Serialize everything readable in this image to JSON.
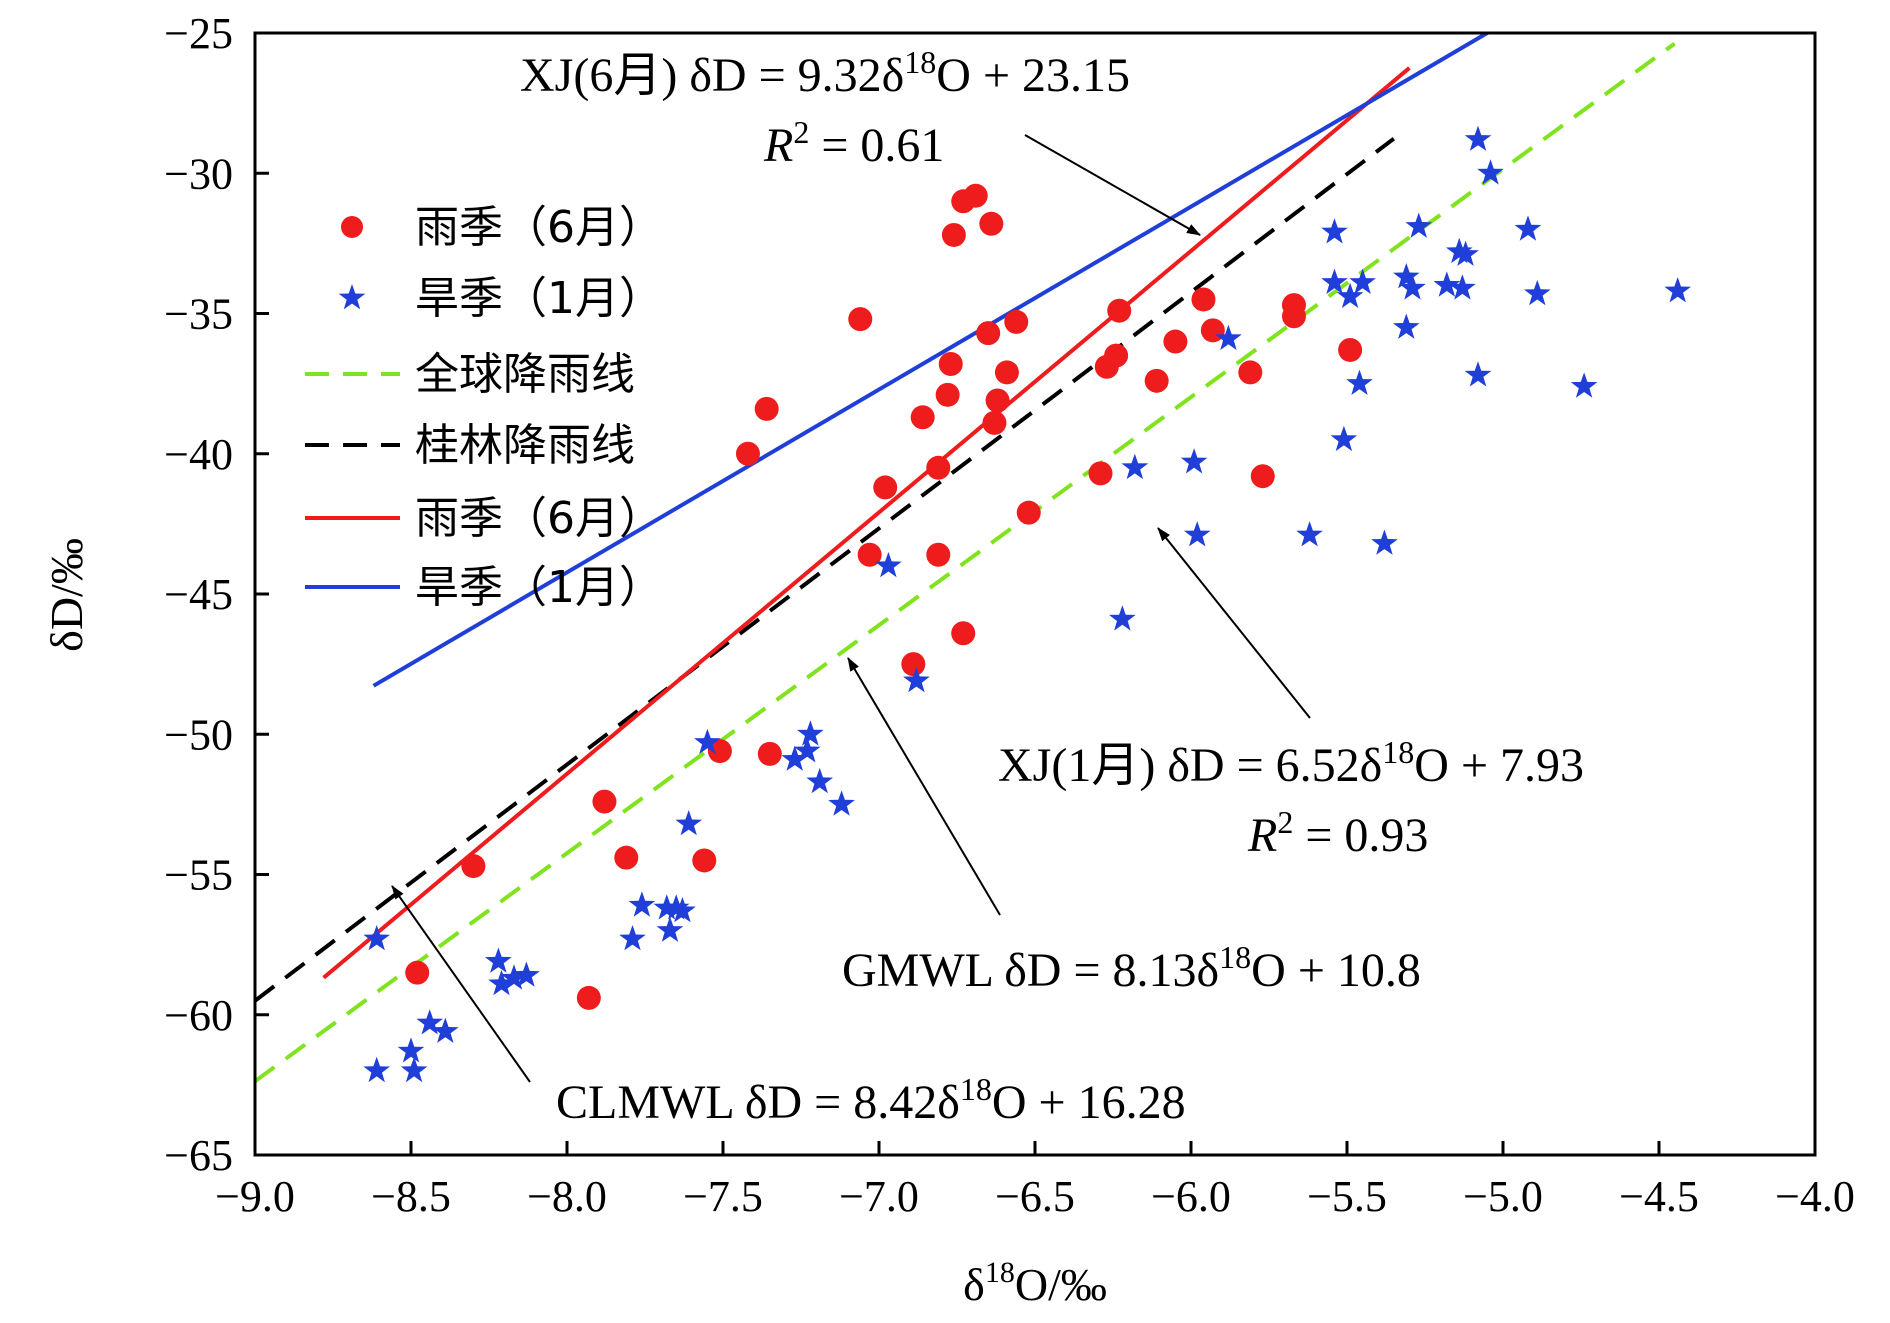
{
  "chart_data": {
    "type": "scatter",
    "xlabel": "δ18O/‰",
    "ylabel": "δD/‰",
    "xlim": [
      -9.0,
      -4.0
    ],
    "ylim": [
      -65,
      -25
    ],
    "x_ticks": [
      -9.0,
      -8.5,
      -8.0,
      -7.5,
      -7.0,
      -6.5,
      -6.0,
      -5.5,
      -5.0,
      -4.5,
      -4.0
    ],
    "y_ticks": [
      -65,
      -60,
      -55,
      -50,
      -45,
      -40,
      -35,
      -30,
      -25
    ],
    "x_tick_labels": [
      "−9.0",
      "−8.5",
      "−8.0",
      "−7.5",
      "−7.0",
      "−6.5",
      "−6.0",
      "−5.5",
      "−5.0",
      "−4.5",
      "−4.0"
    ],
    "y_tick_labels": [
      "−65",
      "−60",
      "−55",
      "−50",
      "−45",
      "−40",
      "−35",
      "−30",
      "−25"
    ],
    "grid": false,
    "legend_position": "top-left",
    "legend": [
      {
        "label": "雨季（6月）",
        "kind": "circle",
        "color": "#ee1c1c"
      },
      {
        "label": "旱季（1月）",
        "kind": "star",
        "color": "#1f3fd8"
      },
      {
        "label": "全球降雨线",
        "kind": "dashed",
        "color": "#7fe31e"
      },
      {
        "label": "桂林降雨线",
        "kind": "dashed",
        "color": "#000000"
      },
      {
        "label": "雨季（6月）",
        "kind": "solid",
        "color": "#ee1c1c"
      },
      {
        "label": "旱季（1月）",
        "kind": "solid",
        "color": "#1f3fd8"
      }
    ],
    "lines": [
      {
        "id": "GMWL",
        "slope": 8.13,
        "intercept": 10.8,
        "x_range": [
          -9.0,
          -4.45
        ],
        "color": "#7fe31e",
        "dashed": true
      },
      {
        "id": "CLMWL",
        "slope": 8.42,
        "intercept": 16.28,
        "x_range": [
          -9.0,
          -5.35
        ],
        "color": "#000000",
        "dashed": true
      },
      {
        "id": "XJ_June",
        "slope": 9.32,
        "intercept": 23.15,
        "x_range": [
          -8.78,
          -5.3
        ],
        "color": "#ee1c1c",
        "dashed": false
      },
      {
        "id": "XJ_Jan",
        "slope": 6.52,
        "intercept": 7.93,
        "x_range": [
          -8.62,
          -4.44
        ],
        "color": "#1f3fd8",
        "dashed": false
      }
    ],
    "series": [
      {
        "marker": "circle",
        "color": "#ee1c1c",
        "points": [
          [
            -8.48,
            -58.5
          ],
          [
            -8.3,
            -54.7
          ],
          [
            -7.93,
            -59.4
          ],
          [
            -7.88,
            -52.4
          ],
          [
            -7.81,
            -54.4
          ],
          [
            -7.56,
            -54.5
          ],
          [
            -7.51,
            -50.6
          ],
          [
            -7.35,
            -50.7
          ],
          [
            -7.42,
            -40.0
          ],
          [
            -7.36,
            -38.4
          ],
          [
            -7.06,
            -35.2
          ],
          [
            -7.03,
            -43.6
          ],
          [
            -6.98,
            -41.2
          ],
          [
            -6.89,
            -47.5
          ],
          [
            -6.86,
            -38.7
          ],
          [
            -6.81,
            -40.5
          ],
          [
            -6.81,
            -43.6
          ],
          [
            -6.78,
            -37.9
          ],
          [
            -6.77,
            -36.8
          ],
          [
            -6.76,
            -32.2
          ],
          [
            -6.73,
            -31.0
          ],
          [
            -6.73,
            -46.4
          ],
          [
            -6.69,
            -30.8
          ],
          [
            -6.65,
            -35.7
          ],
          [
            -6.64,
            -31.8
          ],
          [
            -6.63,
            -38.9
          ],
          [
            -6.62,
            -38.1
          ],
          [
            -6.59,
            -37.1
          ],
          [
            -6.56,
            -35.3
          ],
          [
            -6.52,
            -42.1
          ],
          [
            -6.29,
            -40.7
          ],
          [
            -6.27,
            -36.9
          ],
          [
            -6.24,
            -36.5
          ],
          [
            -6.23,
            -34.9
          ],
          [
            -6.11,
            -37.4
          ],
          [
            -6.05,
            -36.0
          ],
          [
            -5.96,
            -34.5
          ],
          [
            -5.93,
            -35.6
          ],
          [
            -5.81,
            -37.1
          ],
          [
            -5.77,
            -40.8
          ],
          [
            -5.67,
            -34.7
          ],
          [
            -5.67,
            -35.1
          ],
          [
            -5.49,
            -36.3
          ]
        ]
      },
      {
        "marker": "star",
        "color": "#1f3fd8",
        "points": [
          [
            -8.61,
            -57.3
          ],
          [
            -8.61,
            -62.0
          ],
          [
            -8.5,
            -61.3
          ],
          [
            -8.49,
            -62.0
          ],
          [
            -8.44,
            -60.3
          ],
          [
            -8.39,
            -60.6
          ],
          [
            -8.22,
            -58.1
          ],
          [
            -8.21,
            -58.9
          ],
          [
            -8.17,
            -58.7
          ],
          [
            -8.13,
            -58.6
          ],
          [
            -7.79,
            -57.3
          ],
          [
            -7.76,
            -56.1
          ],
          [
            -7.68,
            -56.2
          ],
          [
            -7.67,
            -57.0
          ],
          [
            -7.65,
            -56.2
          ],
          [
            -7.63,
            -56.3
          ],
          [
            -7.61,
            -53.2
          ],
          [
            -7.55,
            -50.3
          ],
          [
            -7.27,
            -50.9
          ],
          [
            -7.23,
            -50.6
          ],
          [
            -7.22,
            -50.0
          ],
          [
            -7.19,
            -51.7
          ],
          [
            -7.12,
            -52.5
          ],
          [
            -6.97,
            -44.0
          ],
          [
            -6.88,
            -48.1
          ],
          [
            -6.22,
            -45.9
          ],
          [
            -6.18,
            -40.5
          ],
          [
            -5.99,
            -40.3
          ],
          [
            -5.98,
            -42.9
          ],
          [
            -5.88,
            -35.9
          ],
          [
            -5.62,
            -42.9
          ],
          [
            -5.54,
            -32.1
          ],
          [
            -5.54,
            -33.9
          ],
          [
            -5.51,
            -39.5
          ],
          [
            -5.49,
            -34.4
          ],
          [
            -5.46,
            -37.5
          ],
          [
            -5.45,
            -33.9
          ],
          [
            -5.38,
            -43.2
          ],
          [
            -5.31,
            -33.7
          ],
          [
            -5.31,
            -35.5
          ],
          [
            -5.29,
            -34.1
          ],
          [
            -5.27,
            -31.9
          ],
          [
            -5.18,
            -34.0
          ],
          [
            -5.14,
            -32.8
          ],
          [
            -5.13,
            -34.1
          ],
          [
            -5.12,
            -32.9
          ],
          [
            -5.08,
            -37.2
          ],
          [
            -5.08,
            -28.8
          ],
          [
            -5.04,
            -30.0
          ],
          [
            -4.92,
            -32.0
          ],
          [
            -4.89,
            -34.3
          ],
          [
            -4.74,
            -37.6
          ],
          [
            -4.44,
            -34.2
          ]
        ]
      }
    ],
    "annotations": [
      {
        "id": "xj6",
        "main": "XJ(6月) δD = 9.32δ",
        "sup": "18",
        "tail": "O + 23.15",
        "r2_label": "R",
        "r2_sup": "2",
        "r2_value": " = 0.61"
      },
      {
        "id": "xj1",
        "main": "XJ(1月)  δD = 6.52δ",
        "sup": "18",
        "tail": "O + 7.93",
        "r2_label": "R",
        "r2_sup": "2",
        "r2_value": " = 0.93"
      },
      {
        "id": "gmwl",
        "main": "GMWL  δD = 8.13δ",
        "sup": "18",
        "tail": "O + 10.8"
      },
      {
        "id": "clmwl",
        "main": "CLMWL  δD = 8.42δ",
        "sup": "18",
        "tail": "O + 16.28"
      }
    ],
    "xlabel_parts": {
      "pre": "δ",
      "sup": "18",
      "post": "O/‰"
    }
  }
}
